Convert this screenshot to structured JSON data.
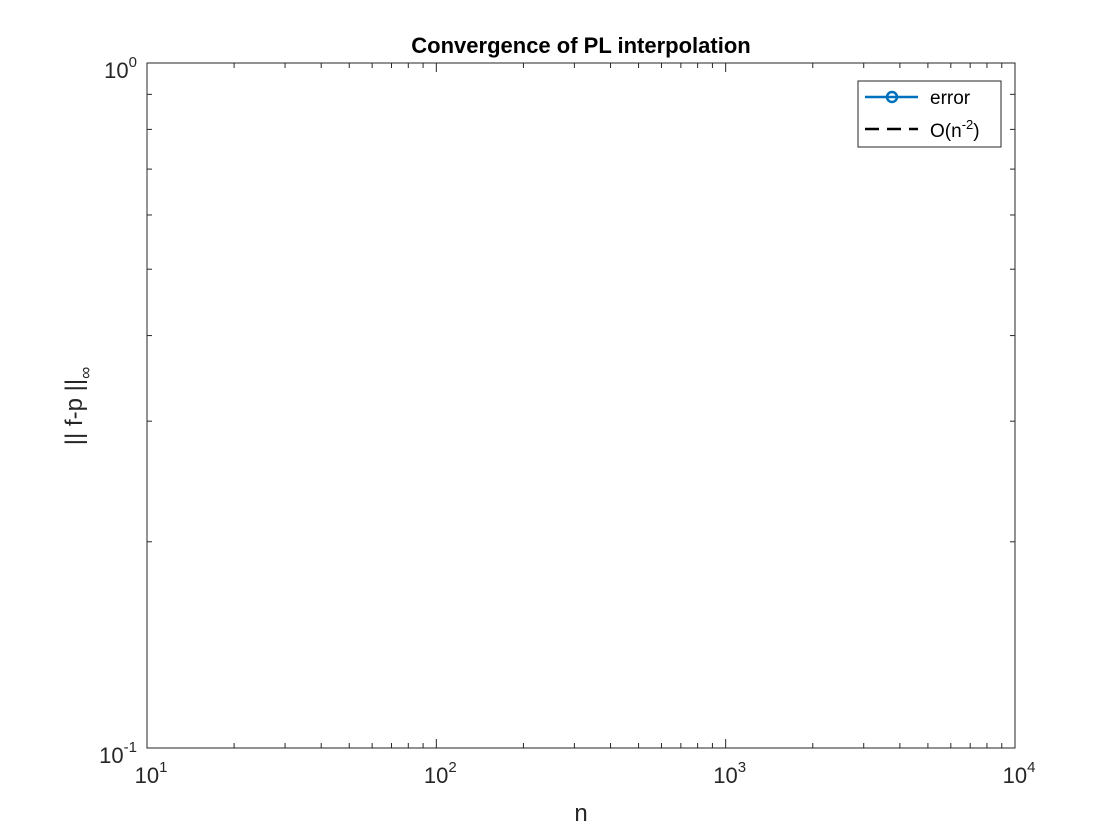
{
  "chart_data": {
    "type": "line",
    "title": "Convergence of PL interpolation",
    "xlabel": "n",
    "ylabel": {
      "main": "|| f-p ||",
      "subscript": "∞"
    },
    "xscale": "log",
    "yscale": "log",
    "xlim": [
      10,
      10000
    ],
    "ylim": [
      0.1,
      1
    ],
    "x_ticks": [
      {
        "value": 10,
        "base": "10",
        "exp": "1"
      },
      {
        "value": 100,
        "base": "10",
        "exp": "2"
      },
      {
        "value": 1000,
        "base": "10",
        "exp": "3"
      },
      {
        "value": 10000,
        "base": "10",
        "exp": "4"
      }
    ],
    "y_ticks": [
      {
        "value": 0.1,
        "base": "10",
        "exp": "-1"
      },
      {
        "value": 1,
        "base": "10",
        "exp": "0"
      }
    ],
    "grid": false,
    "legend_position": "top-right",
    "series": [
      {
        "name": "error",
        "style": "solid-circle-marker",
        "color": "#0072BD",
        "x": [],
        "y": []
      },
      {
        "name": "O(n",
        "name_sup": "-2",
        "name_suffix": ")",
        "style": "dashed",
        "color": "#000000",
        "x": [],
        "y": []
      }
    ]
  }
}
